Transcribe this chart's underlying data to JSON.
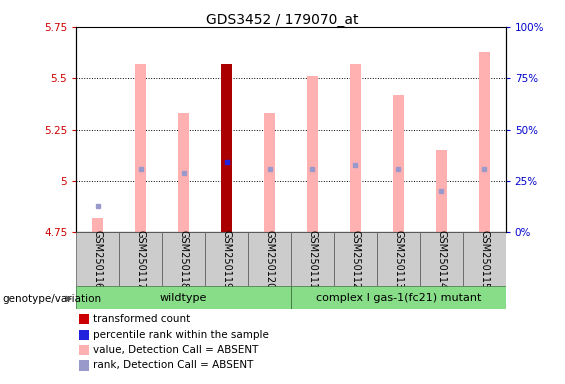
{
  "title": "GDS3452 / 179070_at",
  "samples": [
    "GSM250116",
    "GSM250117",
    "GSM250118",
    "GSM250119",
    "GSM250120",
    "GSM250111",
    "GSM250112",
    "GSM250113",
    "GSM250114",
    "GSM250115"
  ],
  "wildtype_label": "wildtype",
  "mutant_label": "complex I gas-1(fc21) mutant",
  "genotype_label": "genotype/variation",
  "ylim_left": [
    4.75,
    5.75
  ],
  "ylim_right": [
    0,
    100
  ],
  "yticks_left": [
    4.75,
    5.0,
    5.25,
    5.5,
    5.75
  ],
  "ytick_labels_left": [
    "4.75",
    "5",
    "5.25",
    "5.5",
    "5.75"
  ],
  "yticks_right": [
    0,
    25,
    50,
    75,
    100
  ],
  "ytick_labels_right": [
    "0%",
    "25%",
    "50%",
    "75%",
    "100%"
  ],
  "bar_top_pink": [
    4.82,
    5.57,
    5.33,
    5.57,
    5.33,
    5.51,
    5.57,
    5.42,
    5.15,
    5.63
  ],
  "rank_values": [
    4.88,
    5.06,
    5.04,
    5.09,
    5.06,
    5.06,
    5.08,
    5.06,
    4.95,
    5.06
  ],
  "has_red_bar": [
    false,
    false,
    false,
    true,
    false,
    false,
    false,
    false,
    false,
    false
  ],
  "bar_color_pink": "#ffb0b0",
  "bar_color_red": "#aa0000",
  "rank_color_blue_dark": "#2222dd",
  "rank_color_blue_light": "#9999cc",
  "left_axis_color": "#cc0000",
  "right_axis_color": "#0000cc",
  "grid_color": "#000000",
  "title_fontsize": 10,
  "tick_fontsize": 7.5,
  "label_fontsize": 7,
  "legend_fontsize": 7.5,
  "bar_width": 0.25,
  "legend": [
    {
      "label": "transformed count",
      "color": "#cc0000"
    },
    {
      "label": "percentile rank within the sample",
      "color": "#2222dd"
    },
    {
      "label": "value, Detection Call = ABSENT",
      "color": "#ffb0b0"
    },
    {
      "label": "rank, Detection Call = ABSENT",
      "color": "#9999cc"
    }
  ]
}
